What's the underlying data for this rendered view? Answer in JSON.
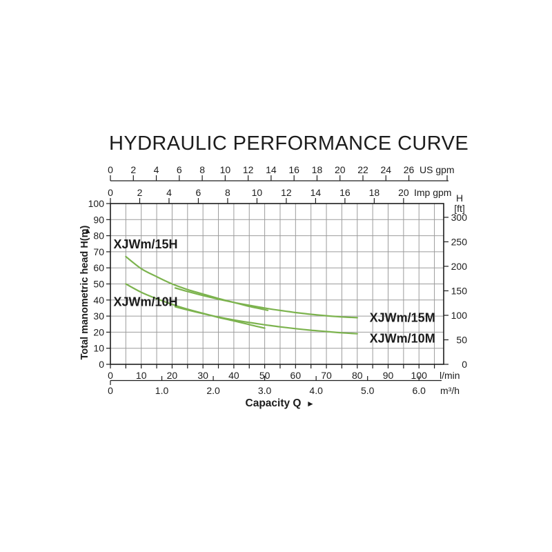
{
  "chart": {
    "title": "HYDRAULIC PERFORMANCE CURVE"
  },
  "chart_data": {
    "type": "line",
    "title": "HYDRAULIC PERFORMANCE CURVE",
    "xlabel": "Capacity Q",
    "xlabel_arrow": "►",
    "ylabel": "Total manometric head H(m)",
    "ylabel_arrow": "▲",
    "grid": {
      "on": true,
      "x_step_lmin": 5,
      "y_step_m": 10
    },
    "x_range_lmin": [
      0,
      108
    ],
    "y_range_m": [
      0,
      100
    ],
    "axes": {
      "us_gpm": {
        "unit": "US gpm",
        "ticks": [
          0,
          2,
          4,
          6,
          8,
          10,
          12,
          14,
          16,
          18,
          20,
          22,
          24,
          26
        ],
        "lmin_per_unit": 3.72
      },
      "imp_gpm": {
        "unit": "Imp gpm",
        "ticks": [
          0,
          2,
          4,
          6,
          8,
          10,
          12,
          14,
          16,
          18,
          20
        ],
        "lmin_per_unit": 4.75
      },
      "lmin": {
        "unit": "l/min",
        "ticks": [
          0,
          10,
          20,
          30,
          40,
          50,
          60,
          70,
          80,
          90,
          100
        ],
        "minor_step": 5,
        "minor_max": 105
      },
      "m3h": {
        "unit": "m³/h",
        "tick_values": [
          0,
          1,
          2,
          3,
          4,
          5,
          6
        ],
        "tick_labels": [
          "0",
          "1.0",
          "2.0",
          "3.0",
          "4.0",
          "5.0",
          "6.0"
        ],
        "lmin_per_unit": 16.667
      },
      "head_m": {
        "unit": "m",
        "ticks": [
          0,
          10,
          20,
          30,
          40,
          50,
          60,
          70,
          80,
          90,
          100
        ]
      },
      "head_ft": {
        "unit_line1": "H",
        "unit_line2": "[ft]",
        "ticks": [
          0,
          50,
          100,
          150,
          200,
          250,
          300
        ],
        "m_per_ft": 0.3048
      }
    },
    "series": [
      {
        "name": "XJWm/15H",
        "points": [
          [
            5,
            67
          ],
          [
            10,
            59.5
          ],
          [
            15,
            54.5
          ],
          [
            20,
            50
          ],
          [
            25,
            46.5
          ],
          [
            30,
            43.7
          ],
          [
            35,
            41
          ],
          [
            40,
            38.5
          ],
          [
            45,
            36
          ],
          [
            51,
            33.6
          ]
        ],
        "label": {
          "text": "XJWm/15H",
          "x": 1,
          "y": 72
        }
      },
      {
        "name": "XJWm/15M",
        "points": [
          [
            21,
            47.5
          ],
          [
            25,
            45.3
          ],
          [
            30,
            42.8
          ],
          [
            35,
            40.5
          ],
          [
            40,
            38.5
          ],
          [
            45,
            36.7
          ],
          [
            50,
            35
          ],
          [
            55,
            33.5
          ],
          [
            60,
            32.2
          ],
          [
            65,
            31.1
          ],
          [
            70,
            30.2
          ],
          [
            75,
            29.5
          ],
          [
            80,
            29
          ]
        ],
        "label": {
          "text": "XJWm/15M",
          "x": 84,
          "y": 26.3
        }
      },
      {
        "name": "XJWm/10H",
        "points": [
          [
            5,
            50
          ],
          [
            10,
            44.8
          ],
          [
            15,
            40.8
          ],
          [
            20,
            37.3
          ],
          [
            25,
            34.3
          ],
          [
            30,
            31.7
          ],
          [
            35,
            29.2
          ],
          [
            40,
            27
          ],
          [
            45,
            24.7
          ],
          [
            50,
            22.5
          ]
        ],
        "label": {
          "text": "XJWm/10H",
          "x": 1,
          "y": 36.2
        }
      },
      {
        "name": "XJWm/10M",
        "points": [
          [
            21,
            35.8
          ],
          [
            25,
            33.8
          ],
          [
            30,
            31.5
          ],
          [
            35,
            29.4
          ],
          [
            40,
            27.6
          ],
          [
            45,
            26
          ],
          [
            50,
            24.6
          ],
          [
            55,
            23.3
          ],
          [
            60,
            22.2
          ],
          [
            65,
            21.2
          ],
          [
            70,
            20.4
          ],
          [
            75,
            19.6
          ],
          [
            80,
            19
          ]
        ],
        "label": {
          "text": "XJWm/10M",
          "x": 84,
          "y": 13.6
        }
      }
    ],
    "colors": {
      "curve": "#7cb34e",
      "grid": "#9b9b9b",
      "axis": "#1c1c1c",
      "text": "#1c1c1c"
    }
  }
}
